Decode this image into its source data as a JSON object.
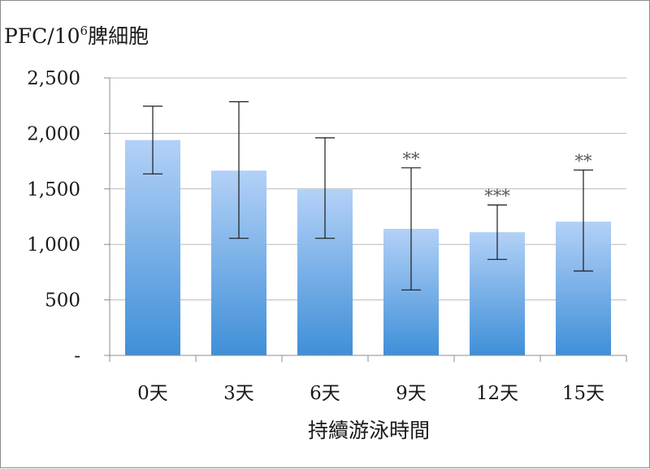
{
  "chart_data": {
    "type": "bar",
    "title": "",
    "ylabel_base": "PFC/10",
    "ylabel_exp": "6",
    "ylabel_unit": "脾細胞",
    "xlabel": "持續游泳時間",
    "categories": [
      "0天",
      "3天",
      "6天",
      "9天",
      "12天",
      "15天"
    ],
    "values": [
      1940,
      1665,
      1495,
      1140,
      1110,
      1205
    ],
    "error_upper": [
      2245,
      2285,
      1960,
      1690,
      1355,
      1670
    ],
    "error_lower": [
      1635,
      1055,
      1055,
      590,
      865,
      760
    ],
    "significance": [
      "",
      "",
      "",
      "**",
      "***",
      "**"
    ],
    "ylim": [
      0,
      2500
    ],
    "yticks": [
      0,
      500,
      1000,
      1500,
      2000,
      2500
    ],
    "ytick_labels": [
      "-",
      "500",
      "1,000",
      "1,500",
      "2,000",
      "2,500"
    ],
    "grid": true,
    "colors": {
      "bar_top": "#b3d1f7",
      "bar_bottom": "#3f8fd8",
      "grid": "#b8b8b8",
      "axis": "#8c8c8c",
      "error": "#1a1a1a"
    }
  }
}
